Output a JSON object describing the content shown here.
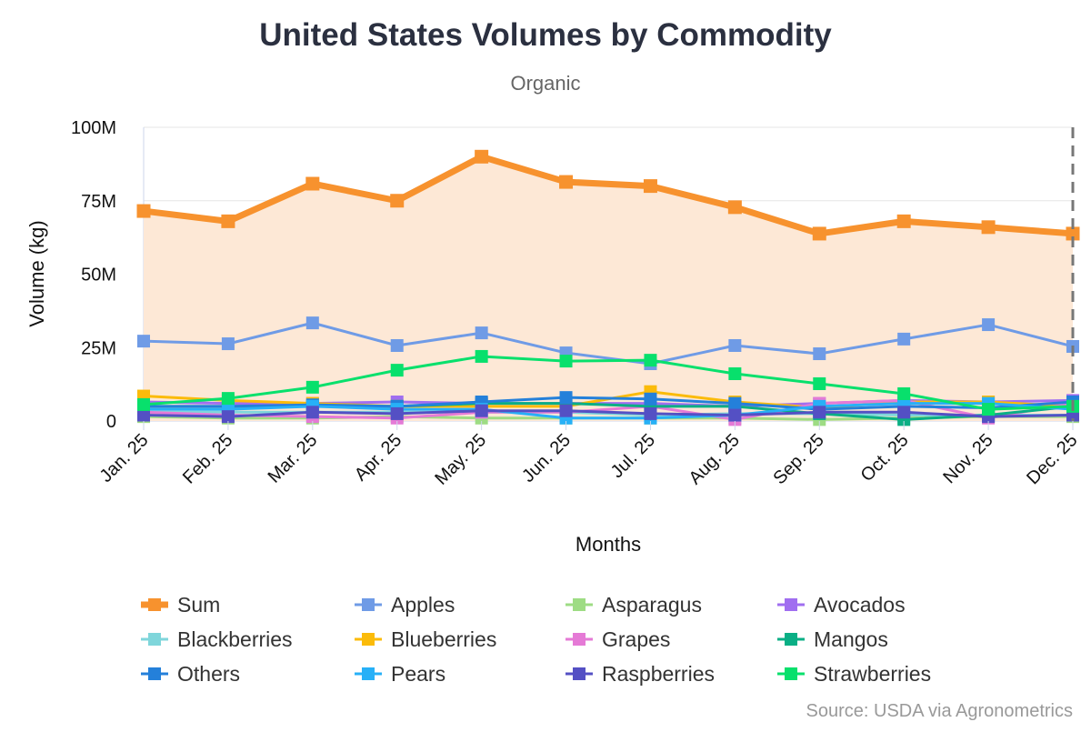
{
  "chart_data": {
    "type": "line",
    "title": "United States Volumes by Commodity",
    "subtitle": "Organic",
    "xlabel": "Months",
    "ylabel": "Volume (kg)",
    "source": "Source: USDA via Agronometrics",
    "ylim": [
      0,
      100000000
    ],
    "yticks": [
      {
        "v": 0,
        "label": "0"
      },
      {
        "v": 25000000,
        "label": "25M"
      },
      {
        "v": 50000000,
        "label": "50M"
      },
      {
        "v": 75000000,
        "label": "75M"
      },
      {
        "v": 100000000,
        "label": "100M"
      }
    ],
    "grid": true,
    "legend_placement": "bottom",
    "categories": [
      "Jan. 25",
      "Feb. 25",
      "Mar. 25",
      "Apr. 25",
      "May. 25",
      "Jun. 25",
      "Jul. 25",
      "Aug. 25",
      "Sep. 25",
      "Oct. 25",
      "Nov. 25",
      "Dec. 25"
    ],
    "units": "M kg",
    "series": [
      {
        "name": "Sum",
        "color": "#f7922e",
        "area": true,
        "values": [
          71.5,
          68,
          80.8,
          75,
          90,
          81.4,
          80,
          72.8,
          63.8,
          68,
          66,
          63.8
        ]
      },
      {
        "name": "Apples",
        "color": "#6f9be6",
        "values": [
          27.2,
          26.3,
          33.4,
          25.7,
          30,
          23.2,
          19.5,
          25.7,
          22.9,
          27.9,
          32.8,
          25.4
        ]
      },
      {
        "name": "Asparagus",
        "color": "#9edc84",
        "values": [
          1.5,
          1,
          1,
          1.5,
          1,
          1,
          1,
          1,
          0.5,
          1,
          1.5,
          1.5
        ]
      },
      {
        "name": "Avocados",
        "color": "#a06ef0",
        "values": [
          6.5,
          6,
          6,
          6.5,
          6,
          6,
          6,
          5,
          6,
          7,
          6.5,
          7
        ]
      },
      {
        "name": "Blackberries",
        "color": "#7fd6db",
        "values": [
          3,
          3,
          3,
          3,
          3,
          3,
          2,
          2.5,
          2.5,
          2,
          2,
          2
        ]
      },
      {
        "name": "Blueberries",
        "color": "#fbbb0a",
        "values": [
          8.5,
          7,
          6,
          5,
          5,
          5,
          10,
          6.5,
          4.5,
          6.5,
          6.5,
          5
        ]
      },
      {
        "name": "Grapes",
        "color": "#e57ad6",
        "values": [
          3,
          2,
          1.5,
          1,
          3,
          3,
          5,
          0.5,
          6,
          7,
          1,
          6
        ]
      },
      {
        "name": "Mangos",
        "color": "#0aaf85",
        "values": [
          5,
          5,
          5,
          5,
          6,
          6,
          5,
          5,
          2.5,
          0.5,
          2,
          5
        ]
      },
      {
        "name": "Others",
        "color": "#2480da",
        "values": [
          5,
          5,
          5.5,
          5,
          6.5,
          8,
          7.5,
          6,
          4,
          5,
          4.5,
          6.5
        ]
      },
      {
        "name": "Pears",
        "color": "#27b0f7",
        "values": [
          4,
          4,
          5,
          4,
          4,
          1,
          1,
          2,
          5,
          6,
          6,
          4
        ]
      },
      {
        "name": "Raspberries",
        "color": "#5450c4",
        "values": [
          2,
          1.5,
          3,
          2.5,
          3.5,
          3.5,
          2.5,
          2,
          3,
          3,
          1.5,
          2
        ]
      },
      {
        "name": "Strawberries",
        "color": "#08e06c",
        "values": [
          5.6,
          7.7,
          11.5,
          17.3,
          22,
          20.4,
          20.7,
          16.1,
          12.7,
          9.3,
          4,
          5
        ]
      }
    ]
  }
}
